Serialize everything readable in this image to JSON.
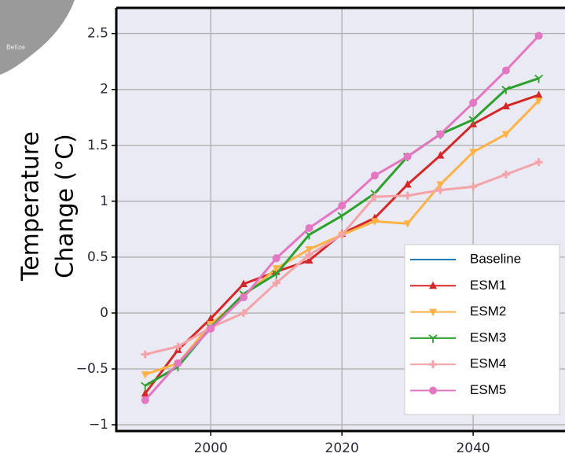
{
  "chart_data": {
    "type": "line",
    "ylabel": [
      "Temperature",
      "Change (°C)"
    ],
    "map_label": "Belize",
    "x": [
      1990,
      1995,
      2000,
      2005,
      2010,
      2015,
      2020,
      2025,
      2030,
      2035,
      2040,
      2045,
      2050
    ],
    "xlim": [
      1985.6,
      2054
    ],
    "xticks": [
      2000,
      2020,
      2040
    ],
    "ylim": [
      -1.056,
      2.73
    ],
    "yticks": [
      {
        "value": -1,
        "label": "−1"
      },
      {
        "value": -0.5,
        "label": "−0.5"
      },
      0,
      0.5,
      1,
      1.5,
      2,
      2.5
    ],
    "grid": true,
    "legend": "lower right",
    "series": [
      {
        "name": "Baseline",
        "color": "#1f77b4",
        "marker": "none",
        "values": [
          null,
          null,
          null,
          null,
          null,
          null,
          null,
          null,
          null,
          null,
          null,
          null,
          null
        ]
      },
      {
        "name": "ESM1",
        "color": "#d62728",
        "marker": "triangle-up",
        "values": [
          -0.72,
          -0.33,
          -0.05,
          0.26,
          0.37,
          0.47,
          0.71,
          0.85,
          1.15,
          1.41,
          1.69,
          1.85,
          1.95
        ]
      },
      {
        "name": "ESM2",
        "color": "#ffb347",
        "marker": "triangle-down",
        "values": [
          -0.55,
          -0.45,
          -0.1,
          0.15,
          0.4,
          0.57,
          0.7,
          0.82,
          0.8,
          1.15,
          1.44,
          1.6,
          1.9
        ]
      },
      {
        "name": "ESM3",
        "color": "#2ca02c",
        "marker": "tri",
        "values": [
          -0.65,
          -0.48,
          -0.13,
          0.17,
          0.35,
          0.7,
          0.87,
          1.07,
          1.4,
          1.6,
          1.73,
          2.0,
          2.1
        ]
      },
      {
        "name": "ESM4",
        "color": "#f4a3a8",
        "marker": "plus",
        "values": [
          -0.37,
          -0.3,
          -0.13,
          0.0,
          0.27,
          0.52,
          0.7,
          1.04,
          1.05,
          1.1,
          1.13,
          1.24,
          1.35
        ]
      },
      {
        "name": "ESM5",
        "color": "#e377c2",
        "marker": "circle",
        "values": [
          -0.78,
          -0.45,
          -0.14,
          0.14,
          0.49,
          0.76,
          0.96,
          1.23,
          1.4,
          1.6,
          1.88,
          2.17,
          2.48
        ]
      }
    ]
  }
}
